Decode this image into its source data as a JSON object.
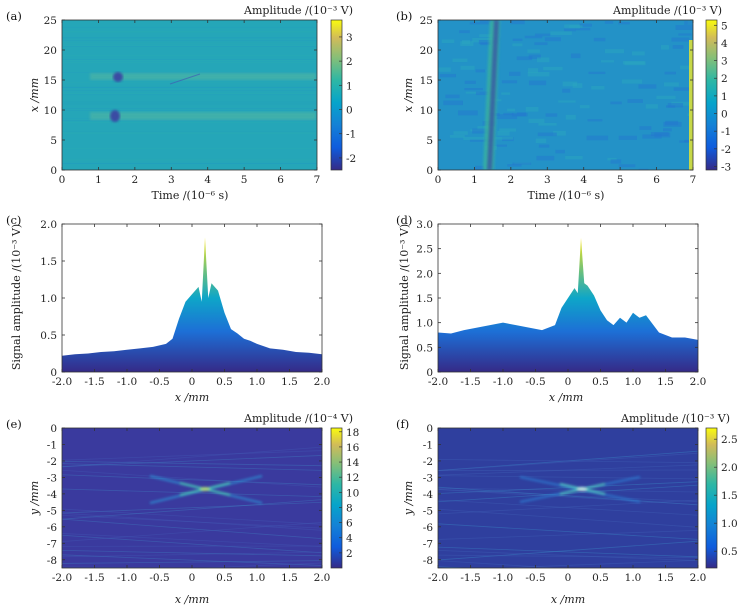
{
  "chart_data": [
    {
      "panel": "(a)",
      "type": "heatmap",
      "xlabel": "Time /(10⁻⁶ s)",
      "ylabel": "x /mm",
      "xlim": [
        0,
        7
      ],
      "ylim": [
        0,
        25
      ],
      "xticks": [
        "0",
        "1",
        "2",
        "3",
        "4",
        "5",
        "6",
        "7"
      ],
      "yticks": [
        "0",
        "5",
        "10",
        "15",
        "20",
        "25"
      ],
      "colorbar": {
        "title": "Amplitude /(10⁻³ V)",
        "range": [
          -2.5,
          3.7
        ],
        "ticks": [
          "-2",
          "-1",
          "0",
          "1",
          "2",
          "3"
        ]
      },
      "features": [
        {
          "x": [
            0.7,
            6.8
          ],
          "y": 15.2,
          "kind": "defect echo line",
          "spot_at": 1.4
        },
        {
          "x": [
            0.7,
            6.8
          ],
          "y": 9.0,
          "kind": "defect echo line",
          "spot_at": 1.4
        }
      ]
    },
    {
      "panel": "(b)",
      "type": "heatmap",
      "xlabel": "Time /(10⁻⁶ s)",
      "ylabel": "x /mm",
      "xlim": [
        0,
        7
      ],
      "ylim": [
        0,
        25
      ],
      "xticks": [
        "0",
        "1",
        "2",
        "3",
        "4",
        "5",
        "6",
        "7"
      ],
      "yticks": [
        "0",
        "5",
        "10",
        "15",
        "20",
        "25"
      ],
      "colorbar": {
        "title": "Amplitude /(10⁻³ V)",
        "range": [
          -3.2,
          5.3
        ],
        "ticks": [
          "-3",
          "-2",
          "-1",
          "0",
          "1",
          "2",
          "3",
          "4",
          "5"
        ]
      },
      "features": [
        {
          "x_top": 1.55,
          "x_bottom": 1.4,
          "kind": "surface wave band"
        },
        {
          "x": 6.85,
          "kind": "bright edge"
        }
      ]
    },
    {
      "panel": "(c)",
      "type": "area",
      "xlabel": "x /mm",
      "ylabel": "Signal amplitude /(10⁻³ V)",
      "xlim": [
        -2,
        2
      ],
      "ylim": [
        0,
        2
      ],
      "xticks": [
        "-2.0",
        "-1.5",
        "-1.0",
        "-0.5",
        "0",
        "0.5",
        "1.0",
        "1.5",
        "2.0"
      ],
      "yticks": [
        "0",
        "0.5",
        "1.0",
        "1.5",
        "2.0"
      ],
      "x": [
        -2.0,
        -1.8,
        -1.6,
        -1.4,
        -1.2,
        -1.0,
        -0.8,
        -0.6,
        -0.4,
        -0.3,
        -0.2,
        -0.1,
        0.0,
        0.1,
        0.15,
        0.2,
        0.25,
        0.3,
        0.4,
        0.5,
        0.6,
        0.7,
        0.8,
        0.9,
        1.0,
        1.2,
        1.4,
        1.6,
        1.8,
        2.0
      ],
      "y": [
        0.22,
        0.24,
        0.25,
        0.27,
        0.28,
        0.3,
        0.32,
        0.34,
        0.38,
        0.45,
        0.72,
        0.95,
        1.05,
        1.15,
        0.95,
        1.82,
        1.0,
        1.2,
        1.1,
        0.8,
        0.58,
        0.52,
        0.45,
        0.42,
        0.38,
        0.32,
        0.3,
        0.27,
        0.26,
        0.24
      ]
    },
    {
      "panel": "(d)",
      "type": "area",
      "xlabel": "x /mm",
      "ylabel": "Signal amplitude /(10⁻³ V)",
      "xlim": [
        -2,
        2
      ],
      "ylim": [
        0,
        3
      ],
      "xticks": [
        "-2.0",
        "-1.5",
        "-1.0",
        "-0.5",
        "0",
        "0.5",
        "1.0",
        "1.5",
        "2.0"
      ],
      "yticks": [
        "0",
        "0.5",
        "1.0",
        "1.5",
        "2.0",
        "2.5",
        "3.0"
      ],
      "x": [
        -2.0,
        -1.8,
        -1.6,
        -1.4,
        -1.2,
        -1.0,
        -0.8,
        -0.6,
        -0.4,
        -0.2,
        -0.1,
        0.0,
        0.1,
        0.15,
        0.2,
        0.25,
        0.3,
        0.4,
        0.5,
        0.6,
        0.7,
        0.8,
        0.9,
        1.0,
        1.1,
        1.2,
        1.4,
        1.6,
        1.8,
        2.0
      ],
      "y": [
        0.8,
        0.78,
        0.85,
        0.9,
        0.95,
        1.0,
        0.95,
        0.9,
        0.85,
        0.95,
        1.3,
        1.5,
        1.7,
        1.6,
        2.72,
        1.8,
        1.75,
        1.55,
        1.25,
        1.05,
        0.95,
        1.1,
        1.0,
        1.2,
        1.1,
        1.15,
        0.8,
        0.7,
        0.7,
        0.65
      ]
    },
    {
      "panel": "(e)",
      "type": "heatmap",
      "xlabel": "x /mm",
      "ylabel": "y /mm",
      "xlim": [
        -2,
        2
      ],
      "ylim": [
        -8.5,
        0
      ],
      "xticks": [
        "-2.0",
        "-1.5",
        "-1.0",
        "-0.5",
        "0",
        "0.5",
        "1.0",
        "1.5",
        "2.0"
      ],
      "yticks": [
        "0",
        "-1",
        "-2",
        "-3",
        "-4",
        "-5",
        "-6",
        "-7",
        "-8"
      ],
      "colorbar": {
        "title": "Amplitude /(10⁻⁴ V)",
        "range": [
          0,
          18.5
        ],
        "ticks": [
          "2",
          "4",
          "6",
          "8",
          "10",
          "12",
          "14",
          "16",
          "18"
        ]
      },
      "focus": {
        "x": 0.2,
        "y": -3.7
      }
    },
    {
      "panel": "(f)",
      "type": "heatmap",
      "xlabel": "x /mm",
      "ylabel": "y /mm",
      "xlim": [
        -2,
        2
      ],
      "ylim": [
        -8.5,
        0
      ],
      "xticks": [
        "-2.0",
        "-1.5",
        "-1.0",
        "-0.5",
        "0",
        "0.5",
        "1.0",
        "1.5",
        "2.0"
      ],
      "yticks": [
        "0",
        "-1",
        "-2",
        "-3",
        "-4",
        "-5",
        "-6",
        "-7",
        "-8"
      ],
      "colorbar": {
        "title": "Amplitude /(10⁻³ V)",
        "range": [
          0.2,
          2.7
        ],
        "ticks": [
          "0.5",
          "1.0",
          "1.5",
          "2.0",
          "2.5"
        ]
      },
      "focus": {
        "x": 0.2,
        "y": -3.7
      }
    }
  ]
}
